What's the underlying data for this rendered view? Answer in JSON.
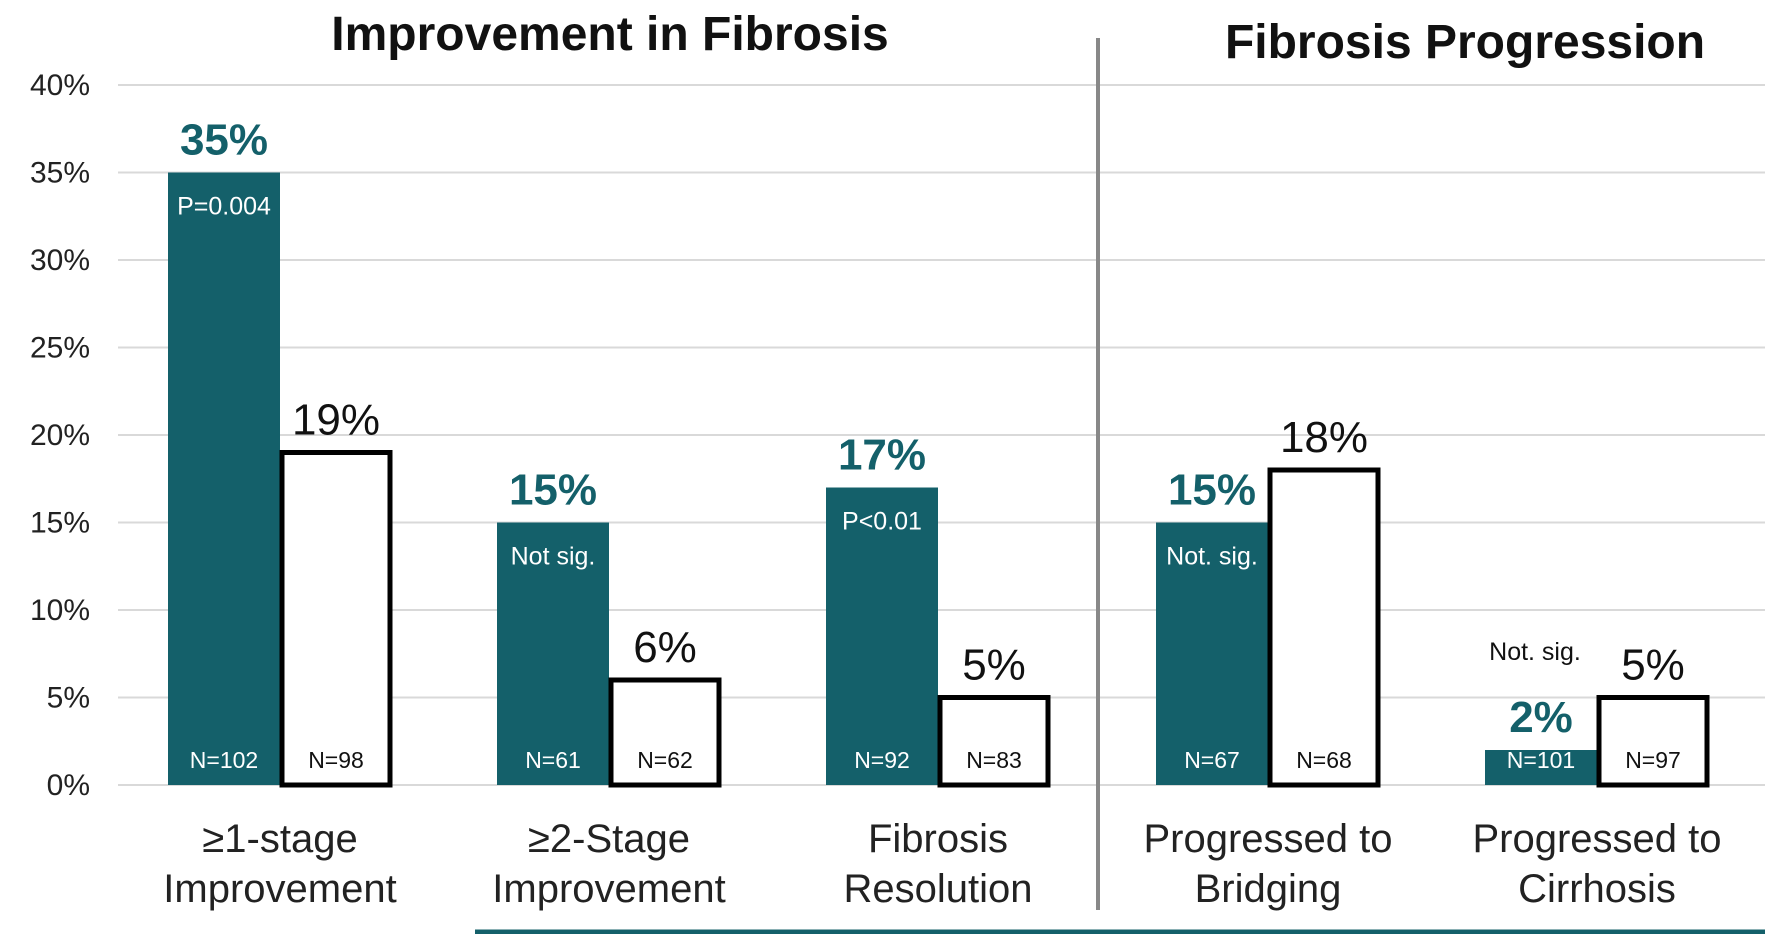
{
  "chart_data": {
    "type": "bar",
    "titles": [
      "Improvement in Fibrosis",
      "Fibrosis Progression"
    ],
    "ylim": [
      0,
      40
    ],
    "yticks": [
      "0%",
      "5%",
      "10%",
      "15%",
      "20%",
      "25%",
      "30%",
      "35%",
      "40%"
    ],
    "grid": true,
    "categories": [
      [
        "≥1-stage",
        "Improvement"
      ],
      [
        "≥2-Stage",
        "Improvement"
      ],
      [
        "Fibrosis",
        "Resolution"
      ],
      [
        "Progressed to",
        "Bridging"
      ],
      [
        "Progressed to",
        "Cirrhosis"
      ]
    ],
    "series": [
      {
        "color": "#14606a",
        "values": [
          35,
          15,
          17,
          15,
          2
        ],
        "value_labels": [
          "35%",
          "15%",
          "17%",
          "15%",
          "2%"
        ],
        "n_labels": [
          "N=102",
          "N=61",
          "N=92",
          "N=67",
          "N=101"
        ]
      },
      {
        "color": "#ffffff",
        "values": [
          19,
          6,
          5,
          18,
          5
        ],
        "value_labels": [
          "19%",
          "6%",
          "5%",
          "18%",
          "5%"
        ],
        "n_labels": [
          "N=98",
          "N=62",
          "N=83",
          "N=68",
          "N=97"
        ]
      }
    ],
    "significance": [
      "P=0.004",
      "Not sig.",
      "P<0.01",
      "Not. sig.",
      "Not. sig."
    ]
  }
}
